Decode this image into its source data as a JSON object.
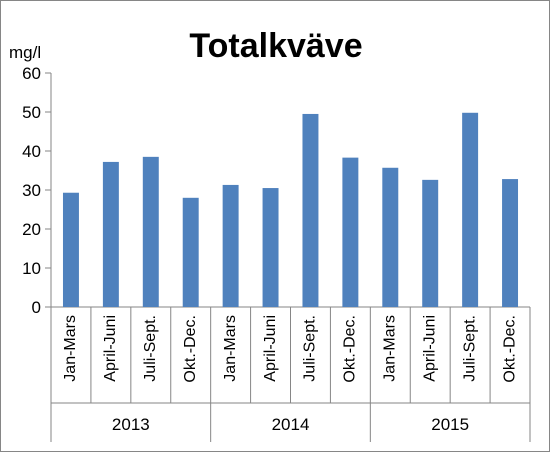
{
  "chart_data": {
    "type": "bar",
    "title": "Totalkväve",
    "ylabel": "mg/l",
    "xlabel": "",
    "ylim": [
      0,
      60
    ],
    "yticks": [
      0,
      10,
      20,
      30,
      40,
      50,
      60
    ],
    "grid": false,
    "legend": "none",
    "bar_color": "#4F81BD",
    "groups": [
      {
        "label": "2013",
        "categories": [
          "Jan-Mars",
          "April-Juni",
          "Juli-Sept.",
          "Okt.-Dec."
        ],
        "values": [
          29.3,
          37.2,
          38.5,
          28.0
        ]
      },
      {
        "label": "2014",
        "categories": [
          "Jan-Mars",
          "April-Juni",
          "Juli-Sept.",
          "Okt.-Dec."
        ],
        "values": [
          31.3,
          30.5,
          49.5,
          38.3
        ]
      },
      {
        "label": "2015",
        "categories": [
          "Jan-Mars",
          "April-Juni",
          "Juli-Sept.",
          "Okt.-Dec."
        ],
        "values": [
          35.7,
          32.6,
          49.8,
          32.8
        ]
      }
    ]
  }
}
